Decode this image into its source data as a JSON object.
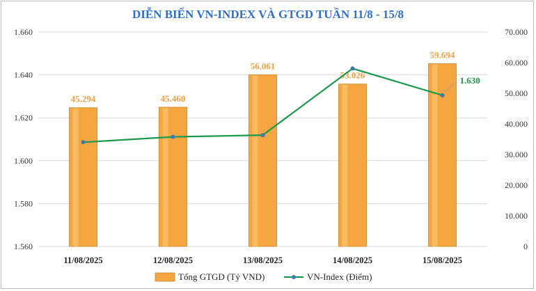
{
  "chart_data": {
    "type": "bar",
    "title": "DIỄN BIẾN VN-INDEX VÀ GTGD TUẦN 11/8 - 15/8",
    "categories": [
      "11/08/2025",
      "12/08/2025",
      "13/08/2025",
      "14/08/2025",
      "15/08/2025"
    ],
    "series": [
      {
        "name": "Tổng GTGD (Tỷ VND)",
        "type": "bar",
        "axis": "right",
        "values": [
          45294,
          45460,
          56061,
          53026,
          59694
        ],
        "labels": [
          "45.294",
          "45.460",
          "56.061",
          "53.026",
          "59.694"
        ],
        "color": "#f5a640"
      },
      {
        "name": "VN-Index (Điểm)",
        "type": "line",
        "axis": "left",
        "values": [
          1608.6,
          1611.1,
          1611.9,
          1643.0,
          1630.5
        ],
        "last_label": "1.630",
        "color": "#1a9a4c",
        "marker_color": "#3f78b5"
      }
    ],
    "y_left": {
      "range": [
        1560,
        1660
      ],
      "ticks": [
        "1.560",
        "1.580",
        "1.600",
        "1.620",
        "1.640",
        "1.660"
      ]
    },
    "y_right": {
      "range": [
        0,
        70000
      ],
      "ticks": [
        "0",
        "10.000",
        "20.000",
        "30.000",
        "40.000",
        "50.000",
        "60.000",
        "70.000"
      ]
    },
    "grid": true,
    "legend_position": "bottom"
  }
}
